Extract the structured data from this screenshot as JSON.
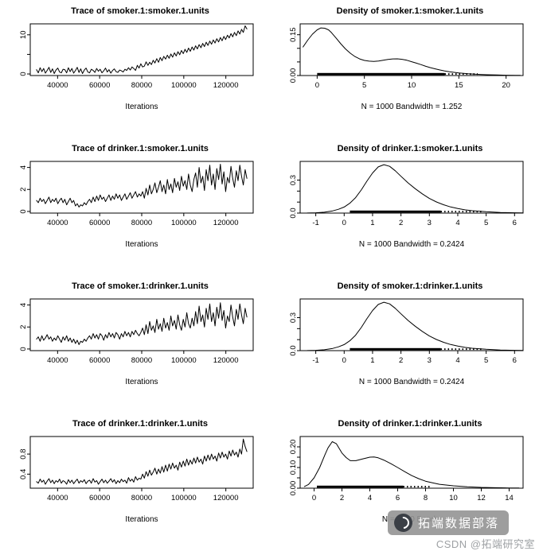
{
  "figure": {
    "background": "#ffffff",
    "line_color": "#000000"
  },
  "watermark": {
    "badge_text": "拓端数据部落",
    "credit_text": "CSDN @拓端研究室",
    "badge_bg": "#949494",
    "credit_color": "#9ea1a4"
  },
  "chart_data": [
    {
      "type": "line",
      "kind": "trace",
      "title": "Trace of smoker.1:smoker.1.units",
      "xlabel": "Iterations",
      "x0": 30000,
      "x1": 130000,
      "xlim": [
        27000,
        133000
      ],
      "ylim": [
        -0.4,
        12.8
      ],
      "xticks": [
        40000,
        60000,
        80000,
        100000,
        120000
      ],
      "xtick_labels": [
        "40000",
        "60000",
        "80000",
        "100000",
        "120000"
      ],
      "yticks": [
        0,
        5,
        10
      ],
      "ytick_labels": [
        "0",
        "",
        "10"
      ],
      "y": [
        1.1,
        0.3,
        1.6,
        0.6,
        1.4,
        0.2,
        0.9,
        1.7,
        0.4,
        1.3,
        0.1,
        1.0,
        1.5,
        0.5,
        0.3,
        1.2,
        1.1,
        0.3,
        1.6,
        0.6,
        1.4,
        0.2,
        0.9,
        1.7,
        0.4,
        1.3,
        0.1,
        1.0,
        1.5,
        0.5,
        0.3,
        1.2,
        0.9,
        0.4,
        1.4,
        0.7,
        1.2,
        0.3,
        0.8,
        1.5,
        0.5,
        1.1,
        0.2,
        0.9,
        1.3,
        0.6,
        0.4,
        1.0,
        0.8,
        0.5,
        1.2,
        0.9,
        1.6,
        1.0,
        1.8,
        1.4,
        0.9,
        2.2,
        1.5,
        2.6,
        1.8,
        2.0,
        3.1,
        2.2,
        3.0,
        2.4,
        3.5,
        2.8,
        3.9,
        3.0,
        4.2,
        3.4,
        4.5,
        3.8,
        4.8,
        4.0,
        5.1,
        4.3,
        5.4,
        4.6,
        5.7,
        4.9,
        6.0,
        5.2,
        6.3,
        5.5,
        6.6,
        5.8,
        6.9,
        6.1,
        7.2,
        6.4,
        7.5,
        6.7,
        7.8,
        7.0,
        8.1,
        7.3,
        8.4,
        7.6,
        8.7,
        7.9,
        9.0,
        8.2,
        9.3,
        8.5,
        9.6,
        8.8,
        9.9,
        9.2,
        10.3,
        9.5,
        10.6,
        9.8,
        11.0,
        10.2,
        11.4,
        10.6,
        12.3,
        11.5
      ]
    },
    {
      "type": "line",
      "kind": "density",
      "title": "Density of smoker.1:smoker.1.units",
      "caption": "N = 1000   Bandwidth = 1.252",
      "xlim": [
        -1.8,
        21.8
      ],
      "ylim": [
        0,
        0.19
      ],
      "xticks": [
        0,
        5,
        10,
        15,
        20
      ],
      "xtick_labels": [
        "0",
        "5",
        "10",
        "15",
        "20"
      ],
      "yticks": [
        0,
        0.05,
        0.1,
        0.15
      ],
      "ytick_labels": [
        "0.00",
        "",
        "",
        "0.15"
      ],
      "rug": [
        0,
        13.5
      ],
      "rug_ext": [
        13.5,
        17
      ],
      "curve": {
        "x": [
          -1.5,
          -1,
          -0.5,
          0,
          0.4,
          0.8,
          1.2,
          1.5,
          2,
          2.5,
          3,
          3.5,
          4,
          4.5,
          5,
          5.5,
          6,
          6.5,
          7,
          7.5,
          8,
          8.5,
          9,
          9.5,
          10,
          10.5,
          11,
          11.5,
          12,
          12.5,
          13,
          13.5,
          14,
          15,
          16,
          17,
          18,
          19,
          20,
          21,
          21.5
        ],
        "y": [
          0.105,
          0.13,
          0.152,
          0.168,
          0.175,
          0.174,
          0.168,
          0.158,
          0.138,
          0.117,
          0.098,
          0.082,
          0.07,
          0.061,
          0.0555,
          0.053,
          0.052,
          0.0535,
          0.056,
          0.059,
          0.061,
          0.0615,
          0.0595,
          0.056,
          0.051,
          0.0455,
          0.04,
          0.034,
          0.029,
          0.0245,
          0.0205,
          0.017,
          0.014,
          0.0095,
          0.0065,
          0.0045,
          0.003,
          0.002,
          0.0013,
          0.0008,
          0.0006
        ]
      }
    },
    {
      "type": "line",
      "kind": "trace",
      "title": "Trace of drinker.1:smoker.1.units",
      "xlabel": "Iterations",
      "x0": 30000,
      "x1": 130000,
      "xlim": [
        27000,
        133000
      ],
      "ylim": [
        -0.15,
        4.55
      ],
      "xticks": [
        40000,
        60000,
        80000,
        100000,
        120000
      ],
      "xtick_labels": [
        "40000",
        "60000",
        "80000",
        "100000",
        "120000"
      ],
      "yticks": [
        0,
        2,
        4
      ],
      "ytick_labels": [
        "0",
        "2",
        "4"
      ],
      "y": [
        1.0,
        0.8,
        1.2,
        0.9,
        1.1,
        0.7,
        1.0,
        1.3,
        0.8,
        1.1,
        0.9,
        1.2,
        0.7,
        1.0,
        1.2,
        0.8,
        1.1,
        0.6,
        0.9,
        1.2,
        0.8,
        1.0,
        0.5,
        0.7,
        0.4,
        0.6,
        0.5,
        0.8,
        0.6,
        0.9,
        1.1,
        0.8,
        1.3,
        0.9,
        1.4,
        1.0,
        1.5,
        1.1,
        1.3,
        0.9,
        1.2,
        1.5,
        1.0,
        1.4,
        1.1,
        1.6,
        1.2,
        1.5,
        1.0,
        1.3,
        1.6,
        1.1,
        1.4,
        1.7,
        1.2,
        1.5,
        1.8,
        1.3,
        1.6,
        1.4,
        1.8,
        1.2,
        2.1,
        1.5,
        2.4,
        1.6,
        2.0,
        2.6,
        1.7,
        2.2,
        2.8,
        1.8,
        2.4,
        1.6,
        2.9,
        2.0,
        2.5,
        1.7,
        3.0,
        2.2,
        2.7,
        1.9,
        3.2,
        2.3,
        2.8,
        2.0,
        3.4,
        2.4,
        1.8,
        2.9,
        3.5,
        2.2,
        4.0,
        2.6,
        3.2,
        1.9,
        3.8,
        2.8,
        4.2,
        2.4,
        3.4,
        2.0,
        3.9,
        2.9,
        4.3,
        2.5,
        3.6,
        1.8,
        3.1,
        2.6,
        4.1,
        3.0,
        2.2,
        3.7,
        2.8,
        4.2,
        3.2,
        2.4,
        3.8,
        3.0
      ]
    },
    {
      "type": "line",
      "kind": "density",
      "title": "Density of drinker.1:smoker.1.units",
      "caption": "N = 1000   Bandwidth = 0.2424",
      "xlim": [
        -1.55,
        6.3
      ],
      "ylim": [
        0,
        0.47
      ],
      "xticks": [
        -1,
        0,
        1,
        2,
        3,
        4,
        5,
        6
      ],
      "xtick_labels": [
        "-1",
        "0",
        "1",
        "2",
        "3",
        "4",
        "5",
        "6"
      ],
      "yticks": [
        0,
        0.1,
        0.2,
        0.3
      ],
      "ytick_labels": [
        "0.0",
        "",
        "",
        "0.3"
      ],
      "rug": [
        0.2,
        3.4
      ],
      "rug_ext": [
        3.4,
        4.9
      ],
      "curve": {
        "x": [
          -1.3,
          -1,
          -0.7,
          -0.4,
          -0.2,
          0,
          0.2,
          0.4,
          0.6,
          0.8,
          1.0,
          1.2,
          1.4,
          1.6,
          1.8,
          2.0,
          2.25,
          2.5,
          2.75,
          3.0,
          3.25,
          3.5,
          3.75,
          4.0,
          4.25,
          4.5,
          5.0,
          5.5,
          6.0,
          6.3
        ],
        "y": [
          0.001,
          0.003,
          0.008,
          0.02,
          0.035,
          0.055,
          0.09,
          0.14,
          0.21,
          0.29,
          0.365,
          0.42,
          0.44,
          0.425,
          0.385,
          0.335,
          0.275,
          0.222,
          0.175,
          0.133,
          0.101,
          0.076,
          0.056,
          0.041,
          0.03,
          0.022,
          0.012,
          0.006,
          0.003,
          0.002
        ]
      }
    },
    {
      "type": "line",
      "kind": "trace",
      "title": "Trace of smoker.1:drinker.1.units",
      "xlabel": "Iterations",
      "x0": 30000,
      "x1": 130000,
      "xlim": [
        27000,
        133000
      ],
      "ylim": [
        -0.15,
        4.55
      ],
      "xticks": [
        40000,
        60000,
        80000,
        100000,
        120000
      ],
      "xtick_labels": [
        "40000",
        "60000",
        "80000",
        "100000",
        "120000"
      ],
      "yticks": [
        0,
        2,
        4
      ],
      "ytick_labels": [
        "0",
        "2",
        "4"
      ],
      "y": [
        0.9,
        1.1,
        0.7,
        1.2,
        0.8,
        1.0,
        1.3,
        0.9,
        1.1,
        0.7,
        1.0,
        0.8,
        1.2,
        0.9,
        0.6,
        1.1,
        0.8,
        1.2,
        0.7,
        1.0,
        0.6,
        0.9,
        0.5,
        0.8,
        0.4,
        0.7,
        0.6,
        0.9,
        0.7,
        1.0,
        1.2,
        0.9,
        1.4,
        1.0,
        1.3,
        0.9,
        1.4,
        1.2,
        0.8,
        1.3,
        1.0,
        1.5,
        1.1,
        1.4,
        1.0,
        1.5,
        1.3,
        0.9,
        1.4,
        1.1,
        1.6,
        1.2,
        1.5,
        1.1,
        1.6,
        1.3,
        1.7,
        1.4,
        1.2,
        1.5,
        1.9,
        1.3,
        2.2,
        1.4,
        2.5,
        1.7,
        2.1,
        1.5,
        2.7,
        1.8,
        2.3,
        1.6,
        2.8,
        1.9,
        2.4,
        1.7,
        3.0,
        2.1,
        2.6,
        1.8,
        3.1,
        2.2,
        1.7,
        2.7,
        2.0,
        3.3,
        2.3,
        1.9,
        2.8,
        2.1,
        3.4,
        2.3,
        3.9,
        2.5,
        3.1,
        2.0,
        3.7,
        2.7,
        4.1,
        2.5,
        3.3,
        2.1,
        3.8,
        2.8,
        4.2,
        2.6,
        3.5,
        1.9,
        3.0,
        2.5,
        4.0,
        2.9,
        2.1,
        3.6,
        2.7,
        4.1,
        3.1,
        2.3,
        3.7,
        2.9
      ]
    },
    {
      "type": "line",
      "kind": "density",
      "title": "Density of smoker.1:drinker.1.units",
      "caption": "N = 1000   Bandwidth = 0.2424",
      "xlim": [
        -1.55,
        6.3
      ],
      "ylim": [
        0,
        0.47
      ],
      "xticks": [
        -1,
        0,
        1,
        2,
        3,
        4,
        5,
        6
      ],
      "xtick_labels": [
        "-1",
        "0",
        "1",
        "2",
        "3",
        "4",
        "5",
        "6"
      ],
      "yticks": [
        0,
        0.1,
        0.2,
        0.3
      ],
      "ytick_labels": [
        "0.0",
        "",
        "",
        "0.3"
      ],
      "rug": [
        0.2,
        3.4
      ],
      "rug_ext": [
        3.4,
        4.9
      ],
      "curve": {
        "x": [
          -1.3,
          -1,
          -0.7,
          -0.4,
          -0.2,
          0,
          0.2,
          0.4,
          0.6,
          0.8,
          1.0,
          1.2,
          1.4,
          1.6,
          1.8,
          2.0,
          2.25,
          2.5,
          2.75,
          3.0,
          3.25,
          3.5,
          3.75,
          4.0,
          4.25,
          4.5,
          5.0,
          5.5,
          6.0,
          6.3
        ],
        "y": [
          0.001,
          0.003,
          0.008,
          0.02,
          0.035,
          0.055,
          0.09,
          0.14,
          0.21,
          0.29,
          0.365,
          0.42,
          0.44,
          0.425,
          0.385,
          0.335,
          0.275,
          0.222,
          0.175,
          0.133,
          0.101,
          0.076,
          0.056,
          0.041,
          0.03,
          0.022,
          0.012,
          0.006,
          0.003,
          0.002
        ]
      }
    },
    {
      "type": "line",
      "kind": "trace",
      "title": "Trace of drinker.1:drinker.1.units",
      "xlabel": "Iterations",
      "x0": 30000,
      "x1": 130000,
      "xlim": [
        27000,
        133000
      ],
      "ylim": [
        0.12,
        1.15
      ],
      "xticks": [
        40000,
        60000,
        80000,
        100000,
        120000
      ],
      "xtick_labels": [
        "40000",
        "60000",
        "80000",
        "100000",
        "120000"
      ],
      "yticks": [
        0.4,
        0.8
      ],
      "ytick_labels": [
        "0.4",
        "0.8"
      ],
      "y": [
        0.25,
        0.22,
        0.3,
        0.24,
        0.28,
        0.2,
        0.26,
        0.31,
        0.23,
        0.28,
        0.21,
        0.27,
        0.24,
        0.3,
        0.22,
        0.27,
        0.25,
        0.2,
        0.29,
        0.23,
        0.28,
        0.21,
        0.26,
        0.3,
        0.22,
        0.27,
        0.24,
        0.29,
        0.21,
        0.26,
        0.28,
        0.22,
        0.31,
        0.24,
        0.27,
        0.2,
        0.25,
        0.3,
        0.23,
        0.28,
        0.22,
        0.26,
        0.31,
        0.24,
        0.29,
        0.21,
        0.27,
        0.23,
        0.3,
        0.25,
        0.28,
        0.22,
        0.33,
        0.26,
        0.3,
        0.24,
        0.35,
        0.28,
        0.32,
        0.3,
        0.4,
        0.32,
        0.45,
        0.36,
        0.48,
        0.38,
        0.44,
        0.52,
        0.4,
        0.5,
        0.42,
        0.55,
        0.44,
        0.58,
        0.46,
        0.6,
        0.5,
        0.62,
        0.52,
        0.58,
        0.48,
        0.64,
        0.54,
        0.66,
        0.56,
        0.7,
        0.58,
        0.68,
        0.6,
        0.72,
        0.62,
        0.74,
        0.64,
        0.7,
        0.6,
        0.76,
        0.66,
        0.78,
        0.68,
        0.8,
        0.7,
        0.76,
        0.66,
        0.82,
        0.72,
        0.84,
        0.74,
        0.8,
        0.7,
        0.86,
        0.76,
        0.88,
        0.78,
        0.84,
        0.74,
        0.9,
        0.8,
        1.1,
        0.95,
        0.85
      ]
    },
    {
      "type": "line",
      "kind": "density",
      "title": "Density of drinker.1:drinker.1.units",
      "caption": "N = 1000   Bandw",
      "xlim": [
        -1.0,
        15.0
      ],
      "ylim": [
        0,
        0.25
      ],
      "xticks": [
        0,
        2,
        4,
        6,
        8,
        10,
        12,
        14
      ],
      "xtick_labels": [
        "0",
        "2",
        "4",
        "6",
        "8",
        "10",
        "12",
        "14"
      ],
      "yticks": [
        0,
        0.05,
        0.1,
        0.15,
        0.2
      ],
      "ytick_labels": [
        "0.00",
        "",
        "0.10",
        "",
        "0.20"
      ],
      "rug": [
        0.2,
        6.4
      ],
      "rug_ext": [
        6.4,
        8.3
      ],
      "curve": {
        "x": [
          -0.7,
          -0.4,
          0,
          0.4,
          0.8,
          1.0,
          1.3,
          1.6,
          2.0,
          2.3,
          2.6,
          3.0,
          3.5,
          4.0,
          4.3,
          4.6,
          5.0,
          5.5,
          6.0,
          6.5,
          7.0,
          7.5,
          8.0,
          8.5,
          9.0,
          10.0,
          11.0,
          12.0,
          13.0,
          14.0,
          14.7
        ],
        "y": [
          0.008,
          0.018,
          0.05,
          0.1,
          0.165,
          0.195,
          0.225,
          0.215,
          0.17,
          0.148,
          0.133,
          0.133,
          0.142,
          0.15,
          0.151,
          0.147,
          0.136,
          0.119,
          0.1,
          0.08,
          0.061,
          0.046,
          0.034,
          0.026,
          0.019,
          0.0115,
          0.007,
          0.004,
          0.0022,
          0.0012,
          0.0008
        ]
      }
    }
  ]
}
